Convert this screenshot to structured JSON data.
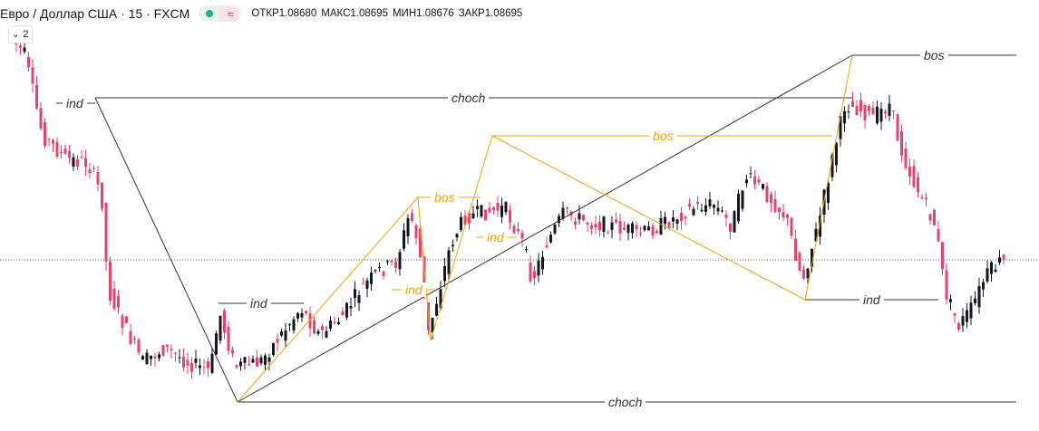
{
  "header": {
    "symbol": "Евро / Доллар США · 15 · FXCM",
    "ohlc": [
      {
        "key": "ОТКР",
        "value": "1.08680"
      },
      {
        "key": "МАКС",
        "value": "1.08695"
      },
      {
        "key": "МИН",
        "value": "1.08676"
      },
      {
        "key": "ЗАКР",
        "value": "1.08695"
      }
    ]
  },
  "collapse_count": "2",
  "annotations": {
    "ind_1": "ind",
    "choch_top": "choch",
    "ind_2": "ind",
    "bos_orange_1": "bos",
    "ind_orange_1": "ind",
    "bos_orange_2": "bos",
    "ind_orange_2": "ind",
    "bos_top": "bos",
    "ind_3": "ind",
    "choch_bottom": "choch"
  },
  "colors": {
    "bullish": "#131722",
    "bearish": "#e9436b",
    "line_black": "#333333",
    "line_orange": "#f0a30a"
  }
}
